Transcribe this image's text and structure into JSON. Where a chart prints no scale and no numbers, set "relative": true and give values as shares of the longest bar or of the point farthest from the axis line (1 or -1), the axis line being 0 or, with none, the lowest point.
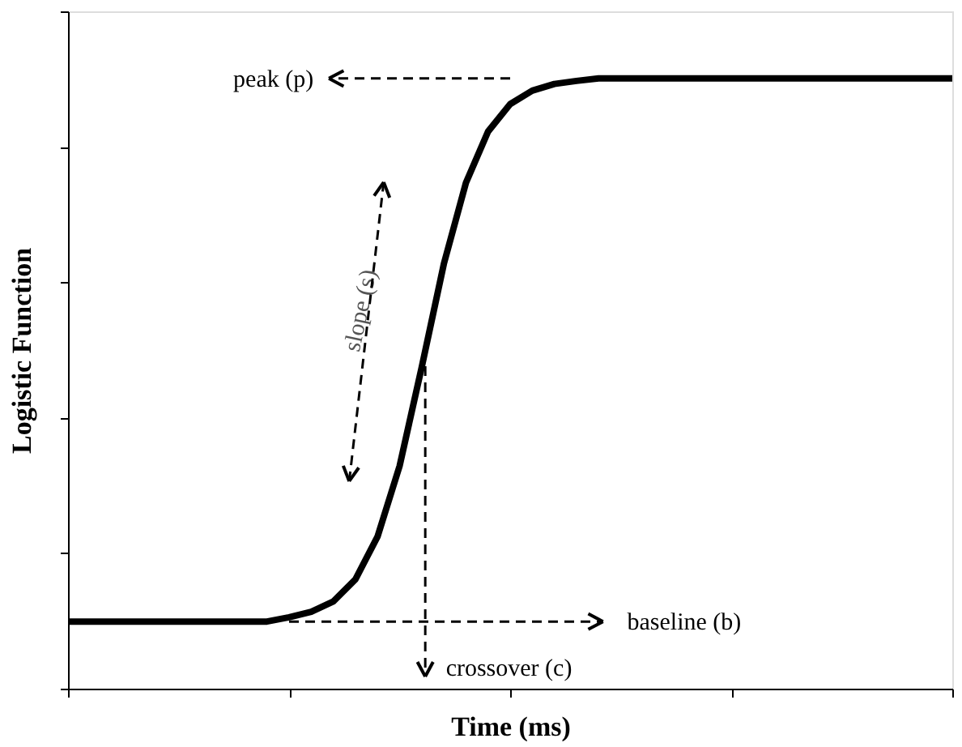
{
  "chart_data": {
    "type": "line",
    "relative": true,
    "xlabel": "Time (ms)",
    "ylabel": "Logistic Function",
    "color": "#000000",
    "line_style": "solid",
    "marker": "none",
    "grid": false,
    "tick_labels": false,
    "categories": [
      null,
      null,
      null,
      null,
      null,
      null,
      null,
      null,
      null,
      null,
      null,
      null,
      null,
      null,
      null,
      null,
      null,
      null,
      null,
      null,
      null,
      null,
      null,
      null,
      null,
      null,
      null,
      null,
      null,
      null,
      null,
      null,
      null,
      null,
      null,
      null,
      null,
      null,
      null,
      null,
      null
    ],
    "values": [
      0.11,
      0.11,
      0.11,
      0.11,
      0.11,
      0.11,
      0.11,
      0.11,
      0.11,
      0.11,
      0.117,
      0.126,
      0.143,
      0.179,
      0.249,
      0.365,
      0.527,
      0.696,
      0.829,
      0.913,
      0.958,
      0.98,
      0.991,
      0.996,
      1,
      1,
      1,
      1,
      1,
      1,
      1,
      1,
      1,
      1,
      1,
      1,
      1,
      1,
      1,
      1,
      1
    ],
    "annotations": [
      "peak (p)",
      "slope (s)",
      "baseline (b)",
      "crossover (c)"
    ]
  }
}
